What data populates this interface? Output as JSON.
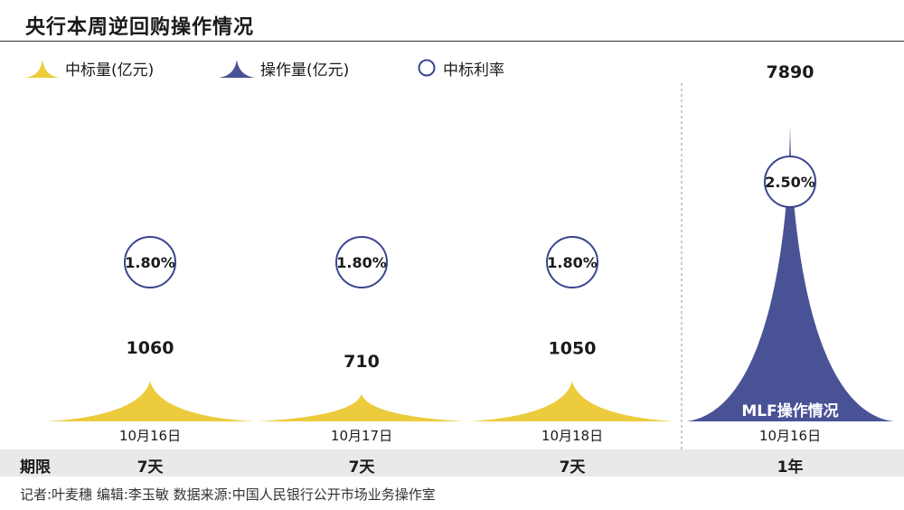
{
  "title": "央行本周逆回购操作情况",
  "legend": {
    "bid_amount": "中标量(亿元)",
    "operation_amount": "操作量(亿元)",
    "bid_rate": "中标利率"
  },
  "colors": {
    "yellow": "#eccb3c",
    "navy": "#4a5296",
    "circle_stroke": "#3b4590",
    "band": "#e9e9e9"
  },
  "period_header": "期限",
  "mlf_label": "MLF操作情况",
  "footer": "记者:叶麦穗   编辑:李玉敏   数据来源:中国人民银行公开市场业务操作室",
  "chart_data": {
    "type": "area",
    "categories": [
      "10月16日",
      "10月17日",
      "10月18日",
      "10月16日"
    ],
    "periods": [
      "7天",
      "7天",
      "7天",
      "1年"
    ],
    "series": [
      {
        "name": "中标量(亿元)",
        "values": [
          1060,
          710,
          1050,
          null
        ]
      },
      {
        "name": "操作量(亿元)",
        "values": [
          null,
          null,
          null,
          7890
        ]
      },
      {
        "name": "中标利率",
        "values": [
          "1.80%",
          "1.80%",
          "1.80%",
          "2.50%"
        ]
      }
    ]
  }
}
